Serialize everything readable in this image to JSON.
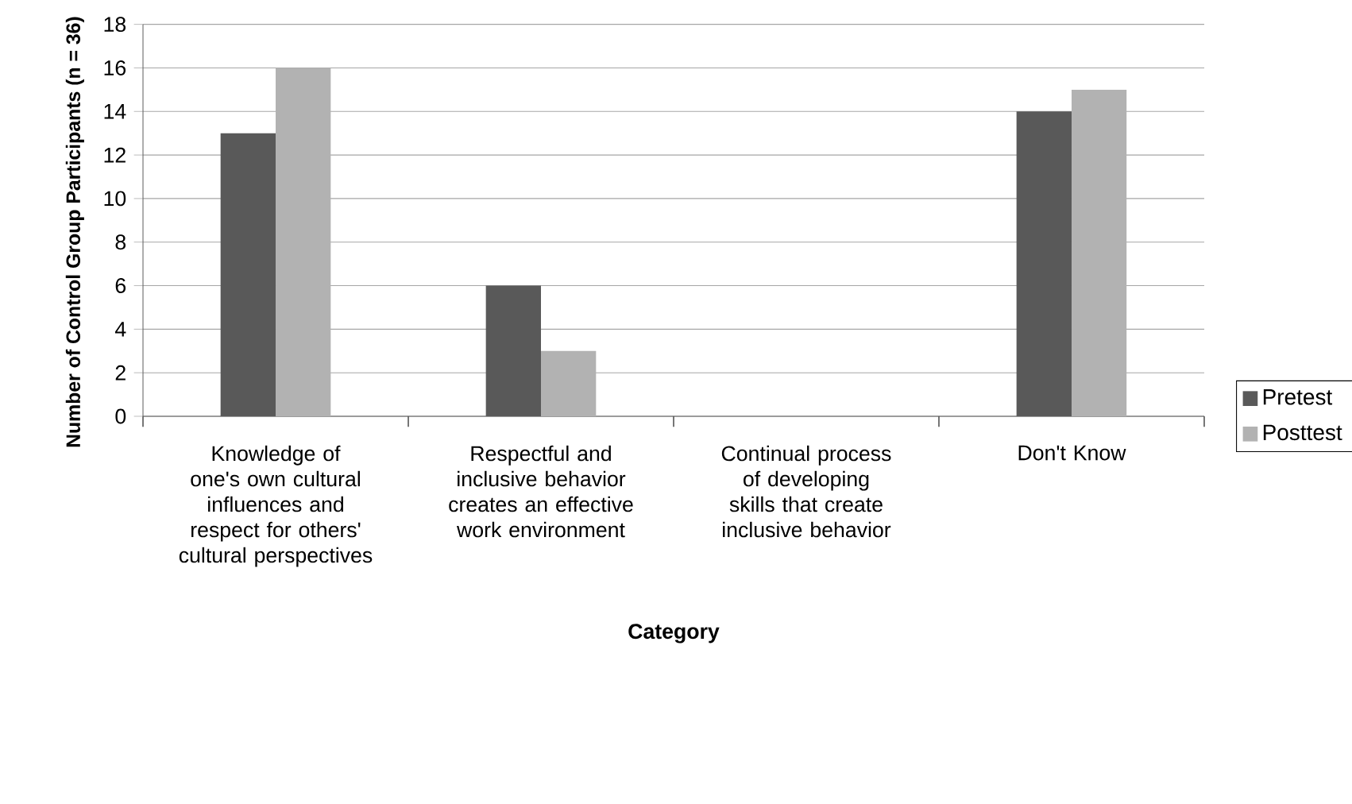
{
  "chart_data": {
    "type": "bar",
    "xlabel": "Category",
    "ylabel": "Number of Control Group Participants (n = 36)",
    "categories": [
      "Knowledge of one's own cultural influences and respect for others' cultural perspectives",
      "Respectful and inclusive behavior creates an effective work environment",
      "Continual process of developing skills that create inclusive behavior",
      "Don't Know"
    ],
    "series": [
      {
        "name": "Pretest",
        "color": "#595959",
        "values": [
          13,
          6,
          0,
          14
        ]
      },
      {
        "name": "Posttest",
        "color": "#b2b2b2",
        "values": [
          16,
          3,
          0,
          15
        ]
      }
    ],
    "ylim": [
      0,
      18
    ],
    "yticks": [
      0,
      2,
      4,
      6,
      8,
      10,
      12,
      14,
      16,
      18
    ],
    "grid": "y",
    "legend": "right"
  }
}
